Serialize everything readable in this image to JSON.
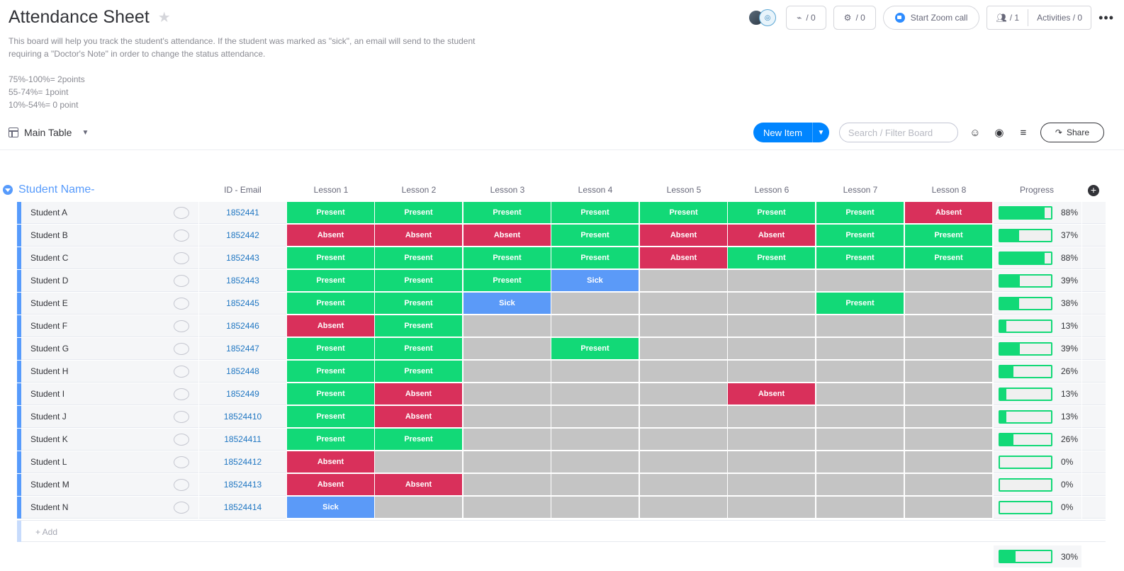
{
  "header": {
    "title": "Attendance Sheet",
    "description_line1": "This board will help you track the student's attendance. If the student was marked as \"sick\", an email will send to the student",
    "description_line2": "requiring a \"Doctor's Note\" in order to change the status attendance.",
    "scale_line1": "75%-100%= 2points",
    "scale_line2": "55-74%= 1point",
    "scale_line3": "10%-54%= 0 point",
    "integrations_count": "/ 0",
    "automations_count": "/ 0",
    "zoom_label": "Start Zoom call",
    "members_count": "/ 1",
    "activities_label": "Activities / 0"
  },
  "toolbar": {
    "view_label": "Main Table",
    "new_item_label": "New Item",
    "search_placeholder": "Search / Filter Board",
    "share_label": "Share"
  },
  "group": {
    "title": "Student Name-",
    "columns": [
      "ID - Email",
      "Lesson 1",
      "Lesson 2",
      "Lesson 3",
      "Lesson 4",
      "Lesson 5",
      "Lesson 6",
      "Lesson 7",
      "Lesson 8",
      "Progress"
    ],
    "add_label": "+ Add",
    "total_progress": 30,
    "total_progress_label": "30%"
  },
  "status_colors": {
    "Present": "#12d977",
    "Absent": "#d9305b",
    "Sick": "#5b9af8",
    "empty": "#c4c4c4"
  },
  "rows": [
    {
      "name": "Student A",
      "id": "1852441",
      "lessons": [
        "Present",
        "Present",
        "Present",
        "Present",
        "Present",
        "Present",
        "Present",
        "Absent"
      ],
      "progress": 88,
      "progress_label": "88%"
    },
    {
      "name": "Student B",
      "id": "1852442",
      "lessons": [
        "Absent",
        "Absent",
        "Absent",
        "Present",
        "Absent",
        "Absent",
        "Present",
        "Present"
      ],
      "progress": 37,
      "progress_label": "37%"
    },
    {
      "name": "Student C",
      "id": "1852443",
      "lessons": [
        "Present",
        "Present",
        "Present",
        "Present",
        "Absent",
        "Present",
        "Present",
        "Present"
      ],
      "progress": 88,
      "progress_label": "88%"
    },
    {
      "name": "Student D",
      "id": "1852443",
      "lessons": [
        "Present",
        "Present",
        "Present",
        "Sick",
        "",
        "",
        "",
        ""
      ],
      "progress": 39,
      "progress_label": "39%"
    },
    {
      "name": "Student E",
      "id": "1852445",
      "lessons": [
        "Present",
        "Present",
        "Sick",
        "",
        "",
        "",
        "Present",
        ""
      ],
      "progress": 38,
      "progress_label": "38%"
    },
    {
      "name": "Student F",
      "id": "1852446",
      "lessons": [
        "Absent",
        "Present",
        "",
        "",
        "",
        "",
        "",
        ""
      ],
      "progress": 13,
      "progress_label": "13%"
    },
    {
      "name": "Student G",
      "id": "1852447",
      "lessons": [
        "Present",
        "Present",
        "",
        "Present",
        "",
        "",
        "",
        ""
      ],
      "progress": 39,
      "progress_label": "39%"
    },
    {
      "name": "Student H",
      "id": "1852448",
      "lessons": [
        "Present",
        "Present",
        "",
        "",
        "",
        "",
        "",
        ""
      ],
      "progress": 26,
      "progress_label": "26%"
    },
    {
      "name": "Student I",
      "id": "1852449",
      "lessons": [
        "Present",
        "Absent",
        "",
        "",
        "",
        "Absent",
        "",
        ""
      ],
      "progress": 13,
      "progress_label": "13%"
    },
    {
      "name": "Student J",
      "id": "18524410",
      "lessons": [
        "Present",
        "Absent",
        "",
        "",
        "",
        "",
        "",
        ""
      ],
      "progress": 13,
      "progress_label": "13%"
    },
    {
      "name": "Student K",
      "id": "18524411",
      "lessons": [
        "Present",
        "Present",
        "",
        "",
        "",
        "",
        "",
        ""
      ],
      "progress": 26,
      "progress_label": "26%"
    },
    {
      "name": "Student L",
      "id": "18524412",
      "lessons": [
        "Absent",
        "",
        "",
        "",
        "",
        "",
        "",
        ""
      ],
      "progress": 0,
      "progress_label": "0%"
    },
    {
      "name": "Student M",
      "id": "18524413",
      "lessons": [
        "Absent",
        "Absent",
        "",
        "",
        "",
        "",
        "",
        ""
      ],
      "progress": 0,
      "progress_label": "0%"
    },
    {
      "name": "Student N",
      "id": "18524414",
      "lessons": [
        "Sick",
        "",
        "",
        "",
        "",
        "",
        "",
        ""
      ],
      "progress": 0,
      "progress_label": "0%"
    }
  ]
}
